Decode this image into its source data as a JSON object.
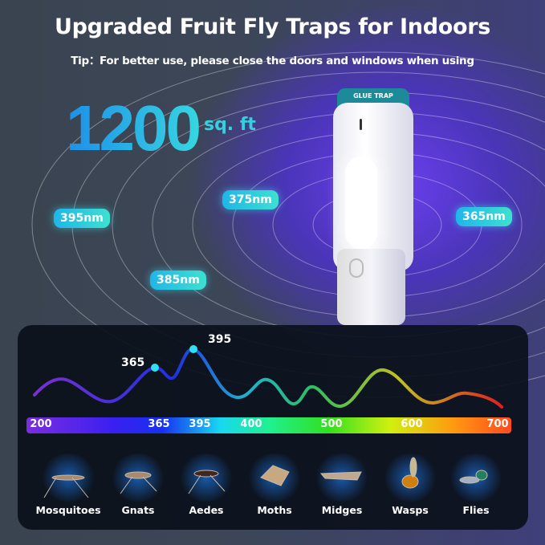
{
  "header": {
    "title": "Upgraded Fruit Fly Traps for Indoors",
    "tip": "Tip：For better use, please close the doors and windows when using"
  },
  "coverage": {
    "value": "1200",
    "unit": "sq. ft"
  },
  "device": {
    "label": "GLUE TRAP"
  },
  "badges": [
    "395nm",
    "375nm",
    "385nm",
    "365nm"
  ],
  "spectrum": {
    "peaks": [
      "365",
      "395"
    ],
    "ticks": [
      "200",
      "365",
      "395",
      "400",
      "500",
      "600",
      "700"
    ]
  },
  "insects": [
    "Mosquitoes",
    "Gnats",
    "Aedes",
    "Moths",
    "Midges",
    "Wasps",
    "Flies"
  ],
  "colors": {
    "accent": "#2ec8e6",
    "panel": "#0a101a",
    "purple": "#6b3ff0"
  }
}
